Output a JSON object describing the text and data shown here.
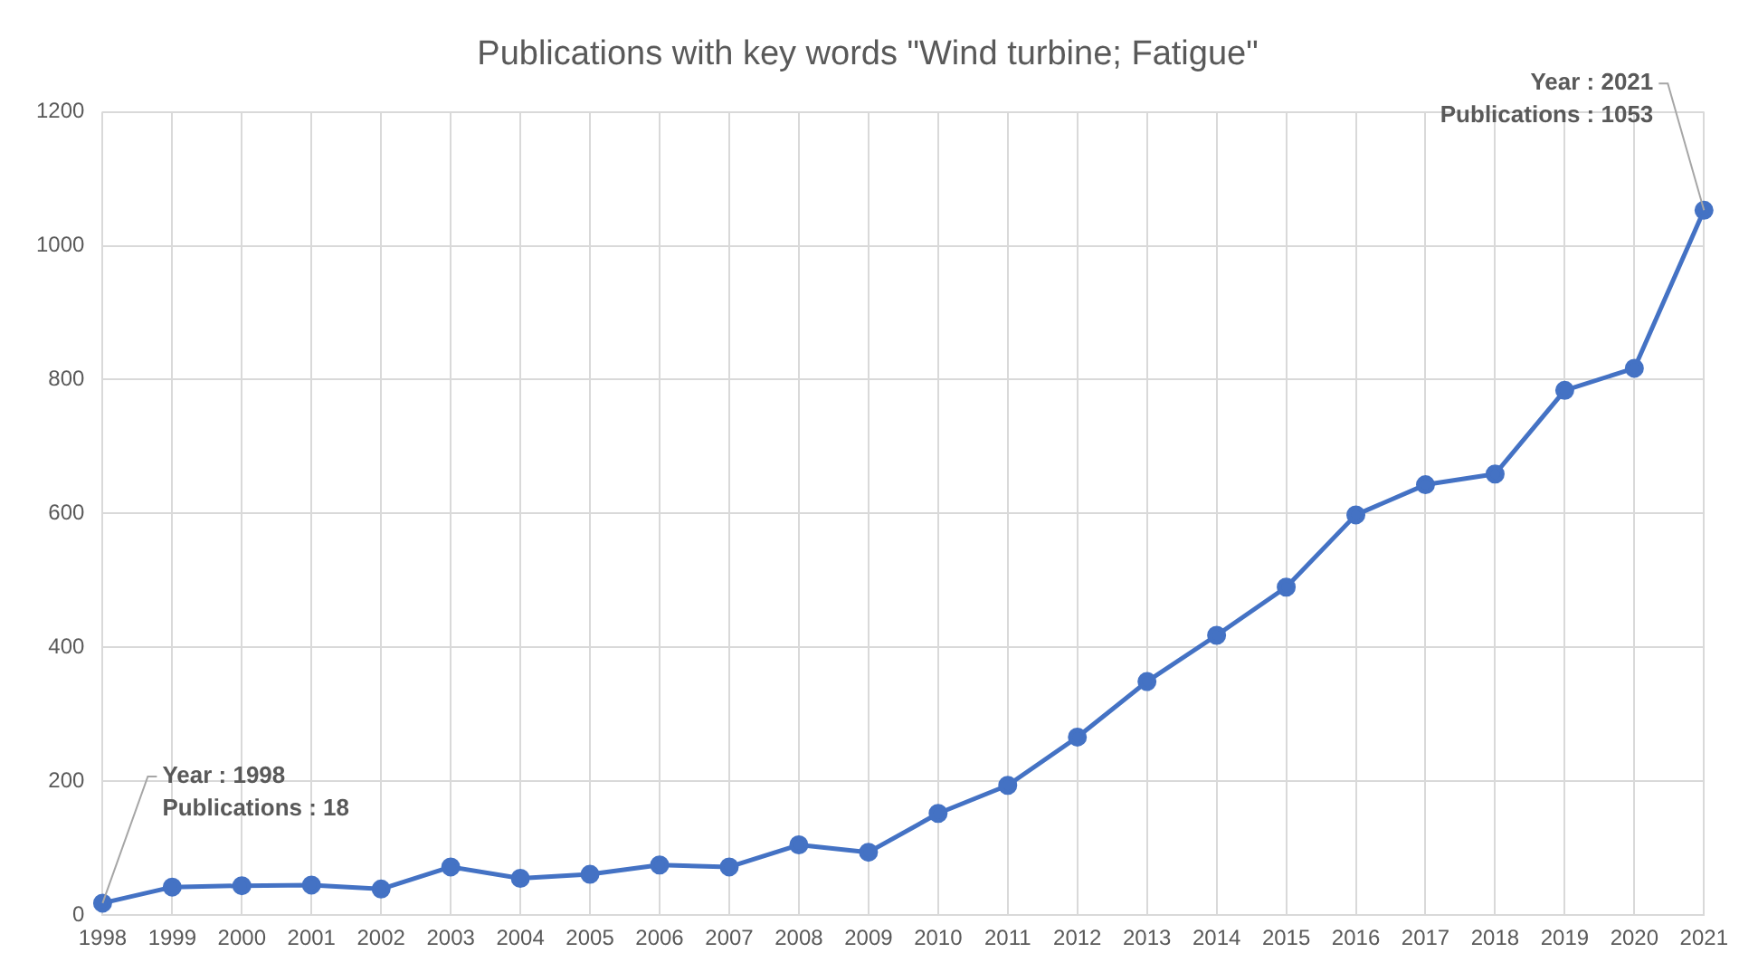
{
  "chart_data": {
    "type": "line",
    "title": "Publications with key words \"Wind turbine; Fatigue\"",
    "categories": [
      "1998",
      "1999",
      "2000",
      "2001",
      "2002",
      "2003",
      "2004",
      "2005",
      "2006",
      "2007",
      "2008",
      "2009",
      "2010",
      "2011",
      "2012",
      "2013",
      "2014",
      "2015",
      "2016",
      "2017",
      "2018",
      "2019",
      "2020",
      "2021"
    ],
    "series": [
      {
        "color": "#4472c4",
        "values": [
          18,
          42,
          44,
          45,
          39,
          72,
          55,
          61,
          75,
          72,
          105,
          94,
          152,
          194,
          266,
          349,
          418,
          490,
          598,
          643,
          659,
          784,
          817,
          1053
        ]
      }
    ],
    "ylim": [
      0,
      1200
    ],
    "yticks": [
      0,
      200,
      400,
      600,
      800,
      1000,
      1200
    ],
    "grid": true,
    "legend": false,
    "marker": "circle",
    "line_style": "solid",
    "annotations": [
      {
        "text": "Year : 1998\nPublications : 18",
        "x": "1998",
        "y": 18
      },
      {
        "text": "Year : 2021\nPublications : 1053",
        "x": "2021",
        "y": 1053
      }
    ]
  }
}
